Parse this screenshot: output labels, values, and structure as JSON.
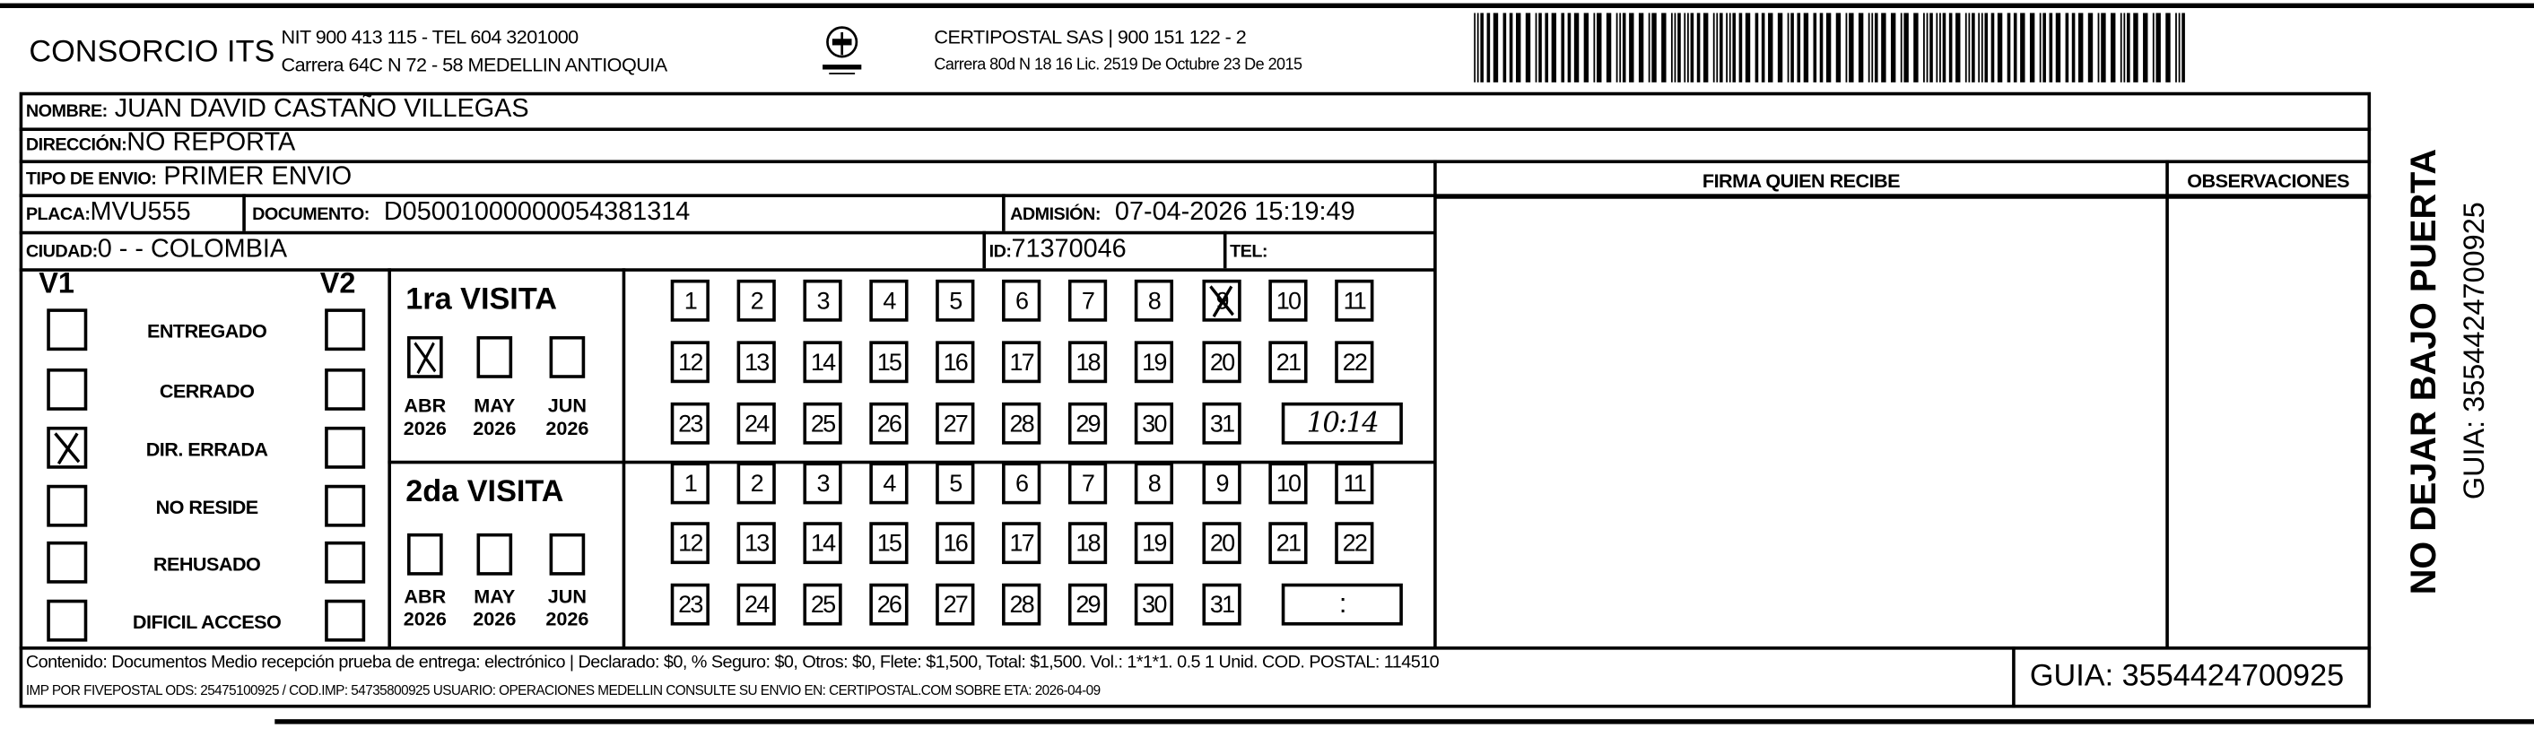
{
  "header": {
    "company": "CONSORCIO ITS",
    "company_line1": "NIT 900 413 115 - TEL 604 3201000",
    "company_line2": "Carrera 64C N 72 - 58 MEDELLIN ANTIOQUIA",
    "logo_text": "CERTIPOSTAL",
    "courier_line1": "CERTIPOSTAL SAS | 900 151 122 - 2",
    "courier_line2": "Carrera 80d N 18 16  Lic. 2519 De Octubre 23 De 2015",
    "barcode_value": "3554424700925"
  },
  "recipient": {
    "nombre_label": "NOMBRE:",
    "nombre": "JUAN DAVID CASTAÑO VILLEGAS",
    "direccion_label": "DIRECCIÓN:",
    "direccion": "NO REPORTA",
    "tipo_label": "TIPO DE ENVIO:",
    "tipo": "PRIMER ENVIO",
    "placa_label": "PLACA:",
    "placa": "MVU555",
    "documento_label": "DOCUMENTO:",
    "documento": "D05001000000054381314",
    "admision_label": "ADMISIÓN:",
    "admision": "07-04-2026 15:19:49",
    "ciudad_label": "CIUDAD:",
    "ciudad": "0 -  - COLOMBIA",
    "id_label": "ID:",
    "id": "71370046",
    "tel_label": "TEL:",
    "tel": ""
  },
  "columns": {
    "firma": "FIRMA QUIEN RECIBE",
    "observaciones": "OBSERVACIONES"
  },
  "status": {
    "v1_label": "V1",
    "v2_label": "V2",
    "options": [
      {
        "label": "ENTREGADO",
        "v1": false,
        "v2": false
      },
      {
        "label": "CERRADO",
        "v1": false,
        "v2": false
      },
      {
        "label": "DIR. ERRADA",
        "v1": true,
        "v2": false
      },
      {
        "label": "NO RESIDE",
        "v1": false,
        "v2": false
      },
      {
        "label": "REHUSADO",
        "v1": false,
        "v2": false
      },
      {
        "label": "DIFICIL ACCESO",
        "v1": false,
        "v2": false
      }
    ]
  },
  "visits": [
    {
      "title": "1ra VISITA",
      "months": [
        {
          "month": "ABR",
          "year": "2026",
          "checked": true
        },
        {
          "month": "MAY",
          "year": "2026",
          "checked": false
        },
        {
          "month": "JUN",
          "year": "2026",
          "checked": false
        }
      ],
      "days": [
        "1",
        "2",
        "3",
        "4",
        "5",
        "6",
        "7",
        "8",
        "9",
        "10",
        "11",
        "12",
        "13",
        "14",
        "15",
        "16",
        "17",
        "18",
        "19",
        "20",
        "21",
        "22",
        "23",
        "24",
        "25",
        "26",
        "27",
        "28",
        "29",
        "30",
        "31"
      ],
      "checked_day": "9",
      "time": "10:14"
    },
    {
      "title": "2da VISITA",
      "months": [
        {
          "month": "ABR",
          "year": "2026",
          "checked": false
        },
        {
          "month": "MAY",
          "year": "2026",
          "checked": false
        },
        {
          "month": "JUN",
          "year": "2026",
          "checked": false
        }
      ],
      "days": [
        "1",
        "2",
        "3",
        "4",
        "5",
        "6",
        "7",
        "8",
        "9",
        "10",
        "11",
        "12",
        "13",
        "14",
        "15",
        "16",
        "17",
        "18",
        "19",
        "20",
        "21",
        "22",
        "23",
        "24",
        "25",
        "26",
        "27",
        "28",
        "29",
        "30",
        "31"
      ],
      "checked_day": null,
      "time": ":"
    }
  ],
  "footer": {
    "line1": "Contenido: Documentos Medio recepción prueba de entrega: electrónico | Declarado: $0, % Seguro: $0, Otros: $0, Flete: $1,500, Total: $1,500. Vol.: 1*1*1. 0.5  1 Unid. COD. POSTAL: 114510",
    "line2": "IMP POR FIVEPOSTAL ODS: 25475100925 / COD.IMP: 54735800925 USUARIO: OPERACIONES MEDELLIN CONSULTE SU ENVIO EN: CERTIPOSTAL.COM SOBRE ETA: 2026-04-09",
    "guia": "GUIA: 3554424700925"
  },
  "side": {
    "warning": "NO DEJAR BAJO PUERTA",
    "guia": "GUIA: 3554424700925"
  }
}
